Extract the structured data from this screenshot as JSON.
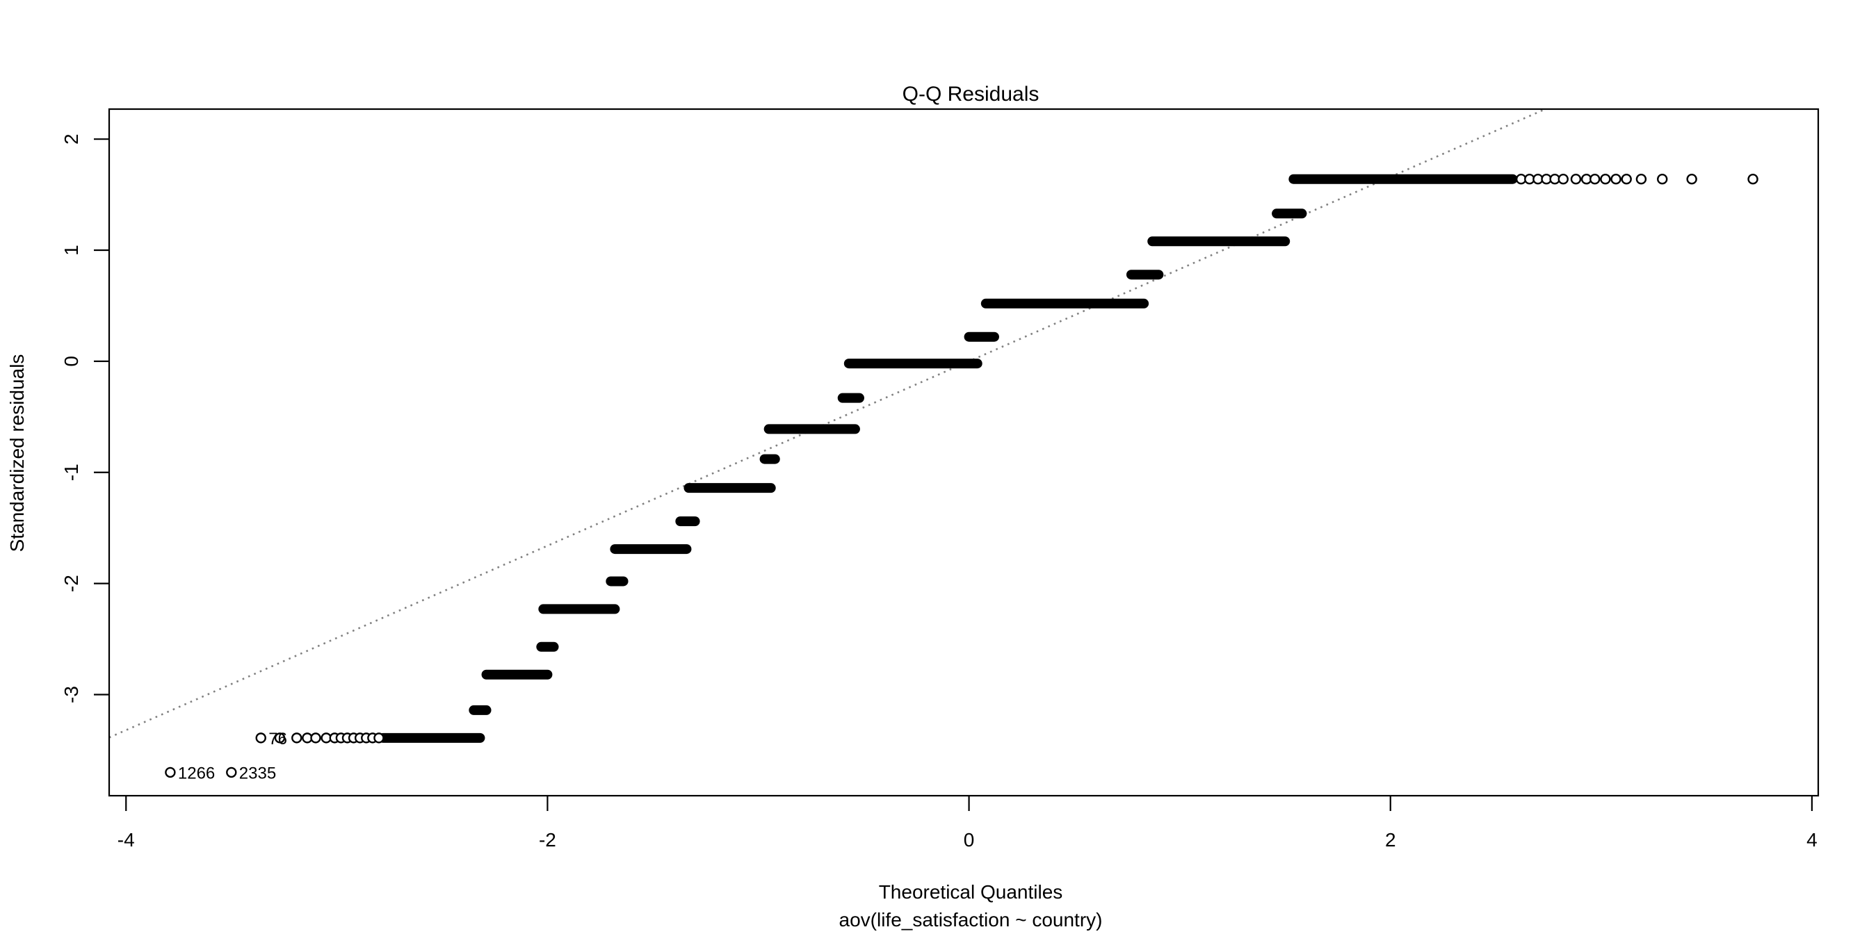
{
  "chart_data": {
    "type": "scatter",
    "variant": "qq-plot",
    "title": "Q-Q Residuals",
    "xlabel": "Theoretical Quantiles",
    "subtitle": "aov(life_satisfaction ~ country)",
    "ylabel": "Standardized residuals",
    "x_ticks": [
      -4,
      -2,
      0,
      2,
      4
    ],
    "y_ticks": [
      2,
      1,
      0,
      -1,
      -2,
      -3
    ],
    "xlim": [
      -4.08,
      4.03
    ],
    "ylim": [
      -3.91,
      2.27
    ],
    "grid": false,
    "legend": "none",
    "colors": {
      "points": "#000000",
      "reference_line": "#808080",
      "frame": "#000000"
    },
    "reference_line": {
      "slope": 0.83,
      "intercept": 0,
      "style": "dotted"
    },
    "point_style": {
      "shape": "open-circle",
      "radius_px": 7
    },
    "bands": [
      {
        "y": 1.64,
        "solid": [
          1.54,
          2.58
        ],
        "circles": [
          2.62,
          2.66,
          2.7,
          2.74,
          2.78,
          2.82,
          2.88,
          2.93,
          2.97,
          3.02,
          3.07,
          3.12,
          3.19,
          3.29,
          3.43,
          3.72
        ]
      },
      {
        "y": 1.33,
        "solid": [
          1.46,
          1.58
        ]
      },
      {
        "y": 1.08,
        "solid": [
          0.87,
          1.5
        ]
      },
      {
        "y": 0.78,
        "solid": [
          0.77,
          0.9
        ]
      },
      {
        "y": 0.52,
        "solid": [
          0.08,
          0.83
        ]
      },
      {
        "y": 0.22,
        "solid": [
          0.0,
          0.12
        ]
      },
      {
        "y": -0.02,
        "solid": [
          -0.57,
          0.04
        ]
      },
      {
        "y": -0.33,
        "solid": [
          -0.6,
          -0.52
        ]
      },
      {
        "y": -0.61,
        "solid": [
          -0.95,
          -0.54
        ]
      },
      {
        "y": -0.88,
        "solid": [
          -0.97,
          -0.92
        ]
      },
      {
        "y": -1.14,
        "solid": [
          -1.33,
          -0.94
        ]
      },
      {
        "y": -1.44,
        "solid": [
          -1.37,
          -1.3
        ]
      },
      {
        "y": -1.69,
        "solid": [
          -1.68,
          -1.34
        ]
      },
      {
        "y": -1.98,
        "solid": [
          -1.7,
          -1.64
        ]
      },
      {
        "y": -2.23,
        "solid": [
          -2.02,
          -1.68
        ]
      },
      {
        "y": -2.57,
        "solid": [
          -2.03,
          -1.97
        ]
      },
      {
        "y": -2.82,
        "solid": [
          -2.29,
          -2.0
        ]
      },
      {
        "y": -3.14,
        "solid": [
          -2.35,
          -2.29
        ]
      },
      {
        "y": -3.39,
        "solid": [
          -2.78,
          -2.32
        ],
        "circles": [
          -3.27,
          -3.19,
          -3.14,
          -3.1,
          -3.05,
          -3.01,
          -2.98,
          -2.95,
          -2.92,
          -2.89,
          -2.86,
          -2.83,
          -2.8
        ]
      }
    ],
    "labeled_points": [
      {
        "x": -3.79,
        "y": -3.7,
        "label": "1266"
      },
      {
        "x": -3.5,
        "y": -3.7,
        "label": "2335"
      },
      {
        "x": -3.36,
        "y": -3.39,
        "label": "76"
      }
    ]
  }
}
